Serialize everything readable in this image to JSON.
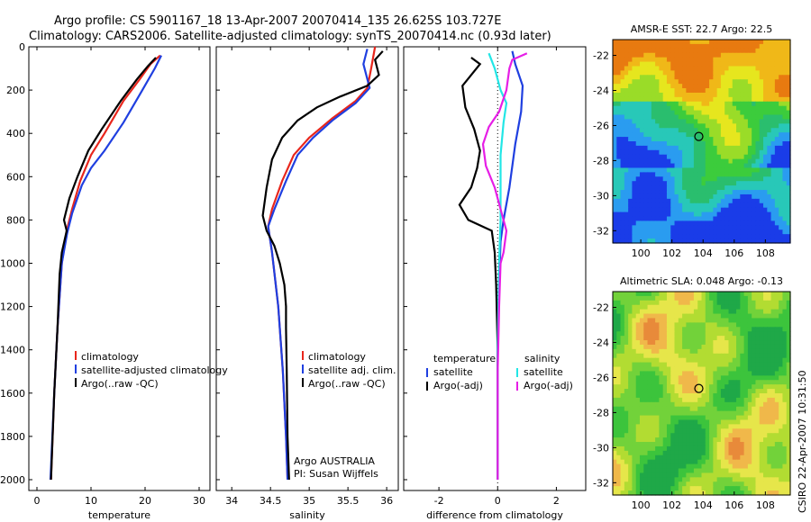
{
  "figure": {
    "title_line1": "Argo profile: CS 5901167_18 13-Apr-2007 20070414_135 26.625S 103.727E",
    "title_line2": "Climatology: CARS2006. Satellite-adjusted climatology: synTS_20070414.nc (0.93d later)",
    "side_label": "CSIRO 22-Apr-2007 10:31:50",
    "colors": {
      "climatology": "#e8261c",
      "satellite": "#1f3fe0",
      "argo": "#000000",
      "sat_sal": "#22e6e6",
      "argo_sal": "#e61ee6"
    }
  },
  "chart_data": [
    {
      "type": "line",
      "xlabel": "temperature",
      "xlim": [
        -1.5,
        32
      ],
      "ylim": [
        2050,
        0
      ],
      "xticks": [
        0,
        10,
        20,
        30
      ],
      "yticks": [
        0,
        200,
        400,
        600,
        800,
        1000,
        1200,
        1400,
        1600,
        1800,
        2000
      ],
      "legend": [
        "climatology",
        "satellite-adjusted climatology",
        "Argo(..raw -QC)"
      ],
      "series": [
        {
          "name": "climatology",
          "color_key": "climatology",
          "points": [
            [
              22.8,
              40
            ],
            [
              21,
              80
            ],
            [
              19,
              150
            ],
            [
              16,
              250
            ],
            [
              12.5,
              400
            ],
            [
              10,
              500
            ],
            [
              8,
              620
            ],
            [
              6.5,
              750
            ],
            [
              5.5,
              850
            ],
            [
              4.6,
              1000
            ],
            [
              3.8,
              1300
            ],
            [
              3.2,
              1600
            ],
            [
              2.6,
              2000
            ]
          ]
        },
        {
          "name": "satellite-adjusted climatology",
          "color_key": "satellite",
          "points": [
            [
              23,
              40
            ],
            [
              21.8,
              100
            ],
            [
              19.5,
              200
            ],
            [
              16,
              350
            ],
            [
              12.5,
              480
            ],
            [
              10,
              560
            ],
            [
              8.3,
              640
            ],
            [
              6.5,
              770
            ],
            [
              5.6,
              860
            ],
            [
              4.6,
              1000
            ],
            [
              3.8,
              1300
            ],
            [
              3.2,
              1600
            ],
            [
              2.5,
              2000
            ]
          ]
        },
        {
          "name": "Argo(..raw -QC)",
          "color_key": "argo",
          "points": [
            [
              22,
              50
            ],
            [
              20.5,
              90
            ],
            [
              18.5,
              150
            ],
            [
              15.5,
              250
            ],
            [
              12,
              380
            ],
            [
              9.5,
              480
            ],
            [
              7.5,
              600
            ],
            [
              6,
              700
            ],
            [
              5,
              800
            ],
            [
              5.5,
              850
            ],
            [
              4.6,
              950
            ],
            [
              4.2,
              1050
            ],
            [
              3.8,
              1300
            ],
            [
              3.2,
              1600
            ],
            [
              2.6,
              2000
            ]
          ]
        }
      ]
    },
    {
      "type": "line",
      "xlabel": "salinity",
      "xlim": [
        33.8,
        36.15
      ],
      "ylim": [
        2050,
        0
      ],
      "xticks": [
        34,
        34.5,
        35,
        35.5,
        36
      ],
      "xticklabels": [
        "34",
        "34.5",
        "35",
        "35.5",
        "36"
      ],
      "legend": [
        "climatology",
        "satellite adj. clim.",
        "Argo(..raw -QC)"
      ],
      "annotation": [
        "Argo AUSTRALIA",
        "PI: Susan Wijffels"
      ],
      "series": [
        {
          "name": "climatology",
          "color_key": "climatology",
          "points": [
            [
              35.85,
              0
            ],
            [
              35.8,
              100
            ],
            [
              35.75,
              190
            ],
            [
              35.6,
              250
            ],
            [
              35.3,
              330
            ],
            [
              35,
              420
            ],
            [
              34.8,
              500
            ],
            [
              34.65,
              620
            ],
            [
              34.52,
              750
            ],
            [
              34.47,
              830
            ],
            [
              34.52,
              950
            ],
            [
              34.6,
              1200
            ],
            [
              34.66,
              1500
            ],
            [
              34.7,
              1800
            ],
            [
              34.72,
              2000
            ]
          ]
        },
        {
          "name": "satellite adj. clim.",
          "color_key": "satellite",
          "points": [
            [
              35.75,
              10
            ],
            [
              35.7,
              80
            ],
            [
              35.78,
              190
            ],
            [
              35.6,
              260
            ],
            [
              35.3,
              340
            ],
            [
              35.05,
              420
            ],
            [
              34.85,
              500
            ],
            [
              34.7,
              620
            ],
            [
              34.55,
              750
            ],
            [
              34.47,
              830
            ],
            [
              34.52,
              950
            ],
            [
              34.6,
              1200
            ],
            [
              34.66,
              1500
            ],
            [
              34.7,
              1800
            ],
            [
              34.72,
              2000
            ]
          ]
        },
        {
          "name": "Argo(..raw -QC)",
          "color_key": "argo",
          "points": [
            [
              35.95,
              20
            ],
            [
              35.85,
              60
            ],
            [
              35.9,
              130
            ],
            [
              35.75,
              180
            ],
            [
              35.4,
              230
            ],
            [
              35.1,
              280
            ],
            [
              34.85,
              340
            ],
            [
              34.65,
              420
            ],
            [
              34.52,
              520
            ],
            [
              34.45,
              650
            ],
            [
              34.4,
              780
            ],
            [
              34.45,
              850
            ],
            [
              34.55,
              920
            ],
            [
              34.62,
              1000
            ],
            [
              34.68,
              1100
            ],
            [
              34.7,
              1200
            ],
            [
              34.7,
              1300
            ],
            [
              34.71,
              1500
            ],
            [
              34.72,
              1800
            ],
            [
              34.74,
              2000
            ]
          ]
        }
      ]
    },
    {
      "type": "line",
      "xlabel": "difference from climatology",
      "xlim": [
        -3.2,
        3.0
      ],
      "ylim": [
        2050,
        0
      ],
      "xticks": [
        -2,
        0,
        2
      ],
      "legend_left_title": "temperature",
      "legend_right_title": "salinity",
      "legend_left": [
        "satellite",
        "Argo(-adj)"
      ],
      "legend_right": [
        "satellite",
        "Argo(-adj)"
      ],
      "series": [
        {
          "name": "temperature satellite",
          "color_key": "satellite",
          "points": [
            [
              0.5,
              20
            ],
            [
              0.6,
              80
            ],
            [
              0.85,
              180
            ],
            [
              0.8,
              300
            ],
            [
              0.6,
              450
            ],
            [
              0.4,
              650
            ],
            [
              0.2,
              800
            ],
            [
              0.1,
              900
            ],
            [
              0.05,
              1100
            ],
            [
              0,
              1400
            ],
            [
              0,
              2000
            ]
          ]
        },
        {
          "name": "temperature Argo(-adj)",
          "color_key": "argo",
          "points": [
            [
              -0.9,
              50
            ],
            [
              -0.6,
              80
            ],
            [
              -1.2,
              180
            ],
            [
              -1.1,
              280
            ],
            [
              -0.8,
              380
            ],
            [
              -0.6,
              480
            ],
            [
              -0.7,
              560
            ],
            [
              -0.9,
              650
            ],
            [
              -1.3,
              730
            ],
            [
              -1.0,
              800
            ],
            [
              -0.2,
              850
            ],
            [
              -0.1,
              950
            ],
            [
              -0.05,
              1100
            ],
            [
              0,
              1400
            ],
            [
              0,
              2000
            ]
          ]
        },
        {
          "name": "salinity satellite",
          "color_key": "sat_sal",
          "points": [
            [
              -0.3,
              30
            ],
            [
              -0.1,
              100
            ],
            [
              0.1,
              200
            ],
            [
              0.3,
              260
            ],
            [
              0.2,
              350
            ],
            [
              0.1,
              500
            ],
            [
              0.1,
              800
            ],
            [
              0.05,
              1000
            ],
            [
              0,
              1400
            ],
            [
              0,
              2000
            ]
          ]
        },
        {
          "name": "salinity Argo(-adj)",
          "color_key": "argo_sal",
          "points": [
            [
              1.0,
              30
            ],
            [
              0.5,
              60
            ],
            [
              0.4,
              100
            ],
            [
              0.3,
              200
            ],
            [
              0.05,
              300
            ],
            [
              -0.3,
              370
            ],
            [
              -0.5,
              450
            ],
            [
              -0.4,
              550
            ],
            [
              -0.1,
              650
            ],
            [
              0.1,
              750
            ],
            [
              0.3,
              850
            ],
            [
              0.2,
              950
            ],
            [
              0.1,
              1000
            ],
            [
              0.05,
              1200
            ],
            [
              0,
              1500
            ],
            [
              0,
              2000
            ]
          ]
        }
      ]
    },
    {
      "type": "heatmap",
      "title": "AMSR-E SST: 22.7 Argo: 22.5",
      "xlim": [
        98.2,
        109.6
      ],
      "ylim": [
        -32.7,
        -21.1
      ],
      "xticks": [
        100,
        102,
        104,
        106,
        108
      ],
      "yticks": [
        -22,
        -24,
        -26,
        -28,
        -30,
        -32
      ],
      "marker": [
        103.727,
        -26.625
      ],
      "palette": [
        "#1a3ce8",
        "#2a9cf0",
        "#28c8b8",
        "#2abe6e",
        "#3ccc3c",
        "#9adc28",
        "#e6e61e",
        "#f0b818",
        "#e87a10"
      ]
    },
    {
      "type": "heatmap",
      "title": "Altimetric SLA: 0.048 Argo: -0.13",
      "xlim": [
        98.2,
        109.6
      ],
      "ylim": [
        -32.7,
        -21.1
      ],
      "xticks": [
        100,
        102,
        104,
        106,
        108
      ],
      "yticks": [
        -22,
        -24,
        -26,
        -28,
        -30,
        -32
      ],
      "marker": [
        103.727,
        -26.625
      ],
      "palette": [
        "#1fa848",
        "#3cc43c",
        "#72d23a",
        "#b2dc32",
        "#e6e64a",
        "#f0b84a",
        "#e88a3a",
        "#d2502a"
      ]
    }
  ]
}
